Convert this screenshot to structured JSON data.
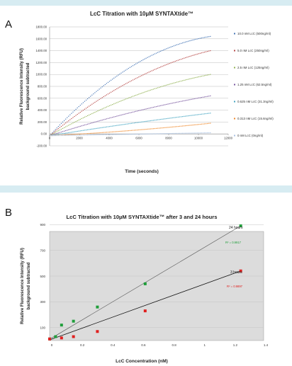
{
  "colors": {
    "band": "#d7ecf2",
    "plot_bg_b": "#dcdcdc",
    "grid": "#bdbdbd",
    "blue": "#4a79b8",
    "red": "#b84a48",
    "green": "#93b356",
    "purple": "#7b5aa0",
    "teal": "#46a6c2",
    "orange": "#ef8a2d",
    "lightblue": "#a9c2e3",
    "green_marker": "#1f9e3a",
    "red_marker": "#e0201f"
  },
  "chart_data": [
    {
      "type": "scatter",
      "panel_label": "A",
      "title": "LcC Titration with 10µM SYNTAXtide™",
      "xlabel": "Time (seconds)",
      "ylabel": "Relative Fluorescence Intensity (RFU)",
      "ylabel2": "background subtracted",
      "xlim": [
        0,
        12000
      ],
      "ylim": [
        -200,
        1800
      ],
      "x_ticks": [
        "0",
        "2000",
        "4000",
        "6000",
        "8000",
        "10000",
        "12000"
      ],
      "y_ticks": [
        "-200.00",
        "0.00",
        "200.00",
        "400.00",
        "600.00",
        "800.00",
        "1000.00",
        "1200.00",
        "1400.00",
        "1600.00",
        "1800.00"
      ],
      "grid": true,
      "legend_position": "right",
      "x_start": 0,
      "x_end": 10800,
      "series": [
        {
          "name": "10.0 nM LcC (500ng/ml)",
          "color": "#4a79b8",
          "end_value": 1640,
          "shape": 0.75
        },
        {
          "name": "5.0 nM LcC (250ng/ml)",
          "color": "#b84a48",
          "end_value": 1400,
          "shape": 0.55
        },
        {
          "name": "2.5 nM LcC (125ng/ml)",
          "color": "#93b356",
          "end_value": 1000,
          "shape": 0.5
        },
        {
          "name": "1.25 nM LcC (62.5ng/ml)",
          "color": "#7b5aa0",
          "end_value": 640,
          "shape": 0.3
        },
        {
          "name": "0.625 nM LcC (31.3ng/ml)",
          "color": "#46a6c2",
          "end_value": 350,
          "shape": 0.15
        },
        {
          "name": "0.313 nM LcC (15.6ng/ml)",
          "color": "#ef8a2d",
          "end_value": 180,
          "shape": -0.35
        },
        {
          "name": "0 nM LcC (0ng/ml)",
          "color": "#a9c2e3",
          "end_value": 20,
          "shape": 0
        }
      ]
    },
    {
      "type": "scatter",
      "panel_label": "B",
      "title": "LcC Titration with 10µM SYNTAXtide™ after 3 and 24 hours",
      "xlabel": "LcC Concentration (nM)",
      "ylabel": "Relative Fluorescence Intensity (RFU)",
      "ylabel2": "background subtracted",
      "xlim": [
        0,
        1.4
      ],
      "ylim": [
        0,
        1000
      ],
      "x_ticks": [
        "0",
        "0.2",
        "0.4",
        "0.6",
        "0.8",
        "1",
        "1.2",
        "1.4"
      ],
      "y_ticks": [
        "100",
        "300",
        "500",
        "700",
        "900"
      ],
      "grid": true,
      "series": [
        {
          "name": "24 hours",
          "r2": "R² = 0.9917",
          "color": "#1f9e3a",
          "x": [
            0,
            0.039,
            0.078,
            0.156,
            0.3125,
            0.625,
            1.25
          ],
          "y": [
            12,
            30,
            120,
            150,
            260,
            440,
            890
          ],
          "trend": [
            10,
            890
          ]
        },
        {
          "name": "3 hours",
          "r2": "R² = 0.9897",
          "color": "#e0201f",
          "x": [
            0,
            0.078,
            0.156,
            0.3125,
            0.625,
            1.25
          ],
          "y": [
            12,
            20,
            30,
            70,
            230,
            540
          ],
          "trend": [
            5,
            540
          ]
        }
      ]
    }
  ]
}
